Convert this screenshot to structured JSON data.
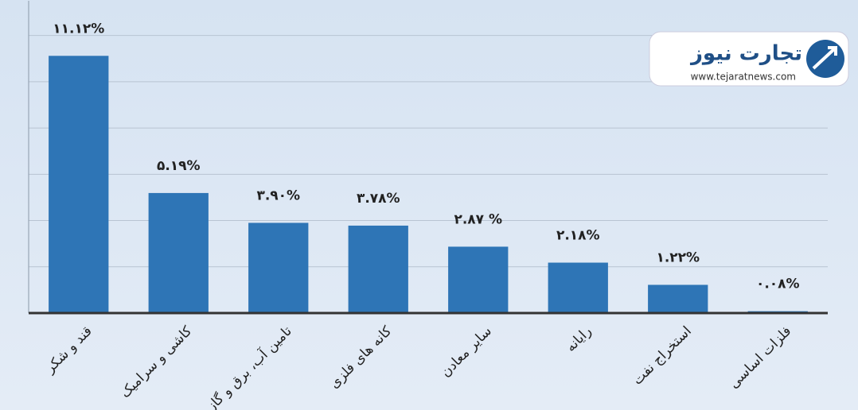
{
  "chart_data": {
    "type": "bar",
    "categories": [
      "قند و شکر",
      "کاشی و سرامیک",
      "تامین آب، برق و گاز",
      "کانه های فلزی",
      "سایر معادن",
      "رایانه",
      "استخراج نفت",
      "فلزات اساسی"
    ],
    "values": [
      11.12,
      5.19,
      3.9,
      3.78,
      2.87,
      2.18,
      1.22,
      0.08
    ],
    "value_labels": [
      "۱۱.۱۲%",
      "۵.۱۹%",
      "۳.۹۰%",
      "۳.۷۸%",
      "۲.۸۷ %",
      "۲.۱۸%",
      "۱.۲۲%",
      "۰.۰۸%"
    ],
    "color": "#2e75b6",
    "ylim": [
      0,
      13.5
    ],
    "yticks": [
      0,
      2,
      4,
      6,
      8,
      10,
      12
    ],
    "grid": true
  },
  "logo": {
    "name": "تجارت نیوز",
    "url": "www.tejaratnews.com"
  }
}
